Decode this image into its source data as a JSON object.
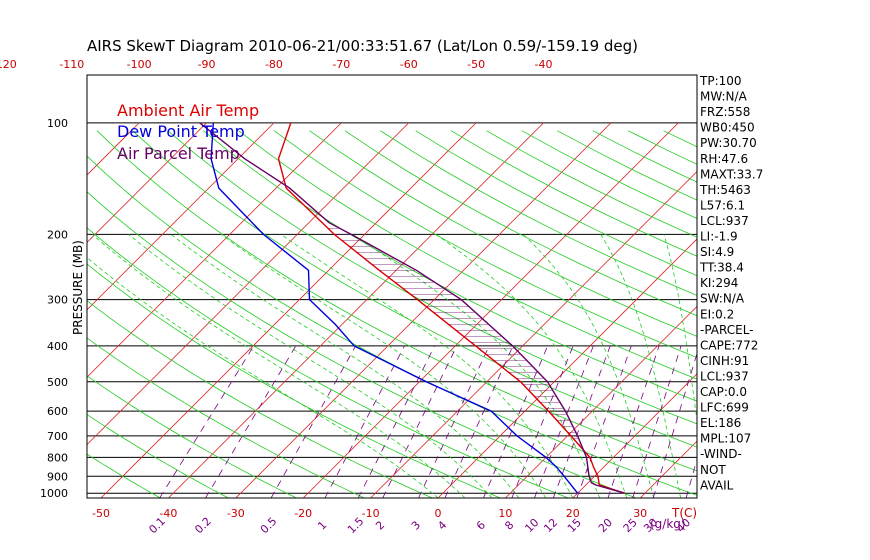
{
  "chart_data": {
    "type": "line",
    "title": "AIRS SkewT Diagram 2010-06-21/00:33:51.67 (Lat/Lon 0.59/-159.19 deg)",
    "ylabel": "PRESSURE (MB)",
    "pressure_ticks": [
      "100",
      "200",
      "300",
      "400",
      "500",
      "600",
      "700",
      "800",
      "900",
      "1000"
    ],
    "pressure_values": [
      100,
      200,
      300,
      400,
      500,
      600,
      700,
      800,
      900,
      1000
    ],
    "bottom_temp_ticks": [
      "-50",
      "-40",
      "-30",
      "-20",
      "-10",
      "0",
      "10",
      "20",
      "30"
    ],
    "bottom_temp_values": [
      -50,
      -40,
      -30,
      -20,
      -10,
      0,
      10,
      20,
      30
    ],
    "top_temp_ticks": [
      "-120",
      "-110",
      "-100",
      "-90",
      "-80",
      "-70",
      "-60",
      "-50",
      "-40"
    ],
    "top_temp_values": [
      -120,
      -110,
      -100,
      -90,
      -80,
      -70,
      -60,
      -50,
      -40
    ],
    "temp_unit_label": "T(C)",
    "mixing_ratio_ticks": [
      "0.1",
      "0.2",
      "0.5",
      "1",
      "1.5",
      "2",
      "3",
      "4",
      "6",
      "8",
      "10",
      "12",
      "15",
      "20",
      "25",
      "30",
      "40"
    ],
    "mixing_ratio_values": [
      0.1,
      0.2,
      0.5,
      1,
      1.5,
      2,
      3,
      4,
      6,
      8,
      10,
      12,
      15,
      20,
      25,
      30,
      40
    ],
    "mixing_ratio_unit": "(g/kg)",
    "legend": [
      {
        "label": "Ambient Air Temp",
        "color": "#dd0000"
      },
      {
        "label": "Dew Point Temp",
        "color": "#0000dd"
      },
      {
        "label": "Air Parcel Temp",
        "color": "#660066"
      }
    ],
    "series": [
      {
        "name": "Ambient Air Temp",
        "color": "#dd0000",
        "points": [
          {
            "p": 1000,
            "t": 27.0
          },
          {
            "p": 950,
            "t": 22.0
          },
          {
            "p": 900,
            "t": 20.5
          },
          {
            "p": 850,
            "t": 18.5
          },
          {
            "p": 800,
            "t": 16.5
          },
          {
            "p": 700,
            "t": 10.5
          },
          {
            "p": 600,
            "t": 3.5
          },
          {
            "p": 500,
            "t": -5.0
          },
          {
            "p": 400,
            "t": -17.0
          },
          {
            "p": 300,
            "t": -32.5
          },
          {
            "p": 250,
            "t": -42.5
          },
          {
            "p": 200,
            "t": -54.5
          },
          {
            "p": 175,
            "t": -61.0
          },
          {
            "p": 150,
            "t": -68.5
          },
          {
            "p": 125,
            "t": -74.0
          },
          {
            "p": 110,
            "t": -76.0
          },
          {
            "p": 100,
            "t": -77.5
          }
        ]
      },
      {
        "name": "Dew Point Temp",
        "color": "#0000dd",
        "points": [
          {
            "p": 1000,
            "t": 20.0
          },
          {
            "p": 900,
            "t": 15.5
          },
          {
            "p": 850,
            "t": 13.0
          },
          {
            "p": 800,
            "t": 10.0
          },
          {
            "p": 700,
            "t": 2.5
          },
          {
            "p": 600,
            "t": -5.0
          },
          {
            "p": 500,
            "t": -19.0
          },
          {
            "p": 400,
            "t": -35.0
          },
          {
            "p": 350,
            "t": -41.0
          },
          {
            "p": 300,
            "t": -48.5
          },
          {
            "p": 250,
            "t": -53.0
          },
          {
            "p": 200,
            "t": -65.0
          },
          {
            "p": 150,
            "t": -78.5
          },
          {
            "p": 125,
            "t": -84.0
          },
          {
            "p": 100,
            "t": -89.0
          }
        ]
      },
      {
        "name": "Air Parcel Temp",
        "color": "#660066",
        "points": [
          {
            "p": 1000,
            "t": 27.0
          },
          {
            "p": 950,
            "t": 21.5
          },
          {
            "p": 937,
            "t": 20.5
          },
          {
            "p": 900,
            "t": 19.2
          },
          {
            "p": 800,
            "t": 16.0
          },
          {
            "p": 700,
            "t": 11.5
          },
          {
            "p": 600,
            "t": 6.0
          },
          {
            "p": 500,
            "t": -1.0
          },
          {
            "p": 400,
            "t": -11.5
          },
          {
            "p": 300,
            "t": -26.0
          },
          {
            "p": 250,
            "t": -37.0
          },
          {
            "p": 200,
            "t": -52.0
          },
          {
            "p": 186,
            "t": -57.0
          },
          {
            "p": 150,
            "t": -68.0
          },
          {
            "p": 125,
            "t": -79.0
          },
          {
            "p": 100,
            "t": -91.0
          }
        ]
      }
    ],
    "indices": [
      "TP:100",
      "MW:N/A",
      "FRZ:558",
      "WB0:450",
      "PW:30.70",
      "RH:47.6",
      "MAXT:33.7",
      "TH:5463",
      "L57:6.1",
      "LCL:937",
      "LI:-1.9",
      "SI:4.9",
      "TT:38.4",
      "KI:294",
      "SW:N/A",
      "EI:0.2",
      "-PARCEL-",
      "CAPE:772",
      "CINH:91",
      "LCL:937",
      "CAP:0.0",
      "LFC:699",
      "EL:186",
      "MPL:107",
      "-WIND-",
      "NOT",
      "AVAIL"
    ],
    "grid": true
  }
}
